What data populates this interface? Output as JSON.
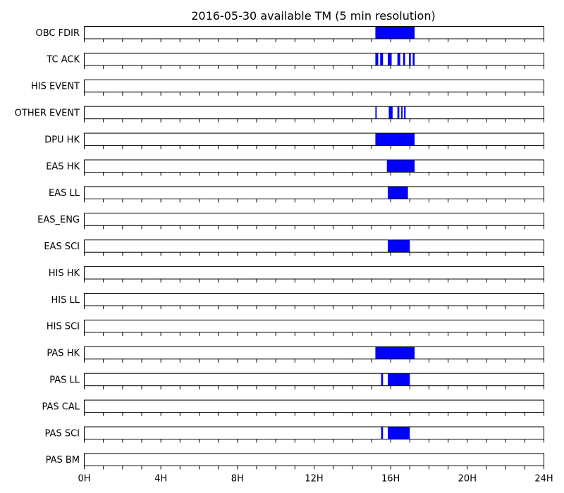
{
  "chart_data": {
    "type": "timeline",
    "title": "2016-05-30 available TM (5 min resolution)",
    "xlabel": "",
    "ylabel": "",
    "x_unit": "hours",
    "xlim": [
      0,
      24
    ],
    "x_ticks": [
      0,
      4,
      8,
      12,
      16,
      20,
      24
    ],
    "x_tick_labels": [
      "0H",
      "4H",
      "8H",
      "12H",
      "16H",
      "20H",
      "24H"
    ],
    "x_minor_step_hours": 1,
    "bar_color": "#0000ff",
    "grid": false,
    "rows": [
      {
        "label": "OBC FDIR",
        "intervals": [
          [
            15.2,
            17.25
          ]
        ]
      },
      {
        "label": "TC ACK",
        "intervals": [
          [
            15.2,
            15.35
          ],
          [
            15.45,
            15.6
          ],
          [
            15.85,
            16.05
          ],
          [
            16.35,
            16.5
          ],
          [
            16.65,
            16.75
          ],
          [
            16.95,
            17.05
          ],
          [
            17.15,
            17.25
          ]
        ]
      },
      {
        "label": "HIS EVENT",
        "intervals": []
      },
      {
        "label": "OTHER EVENT",
        "intervals": [
          [
            15.2,
            15.27
          ],
          [
            15.9,
            16.1
          ],
          [
            16.35,
            16.45
          ],
          [
            16.55,
            16.62
          ],
          [
            16.7,
            16.78
          ]
        ]
      },
      {
        "label": "DPU HK",
        "intervals": [
          [
            15.2,
            17.25
          ]
        ]
      },
      {
        "label": "EAS HK",
        "intervals": [
          [
            15.8,
            17.25
          ]
        ]
      },
      {
        "label": "EAS LL",
        "intervals": [
          [
            15.85,
            16.9
          ]
        ]
      },
      {
        "label": "EAS_ENG",
        "intervals": []
      },
      {
        "label": "EAS SCI",
        "intervals": [
          [
            15.85,
            17.0
          ]
        ]
      },
      {
        "label": "HIS HK",
        "intervals": []
      },
      {
        "label": "HIS LL",
        "intervals": []
      },
      {
        "label": "HIS SCI",
        "intervals": []
      },
      {
        "label": "PAS HK",
        "intervals": [
          [
            15.2,
            17.25
          ]
        ]
      },
      {
        "label": "PAS LL",
        "intervals": [
          [
            15.5,
            15.6
          ],
          [
            15.85,
            17.0
          ]
        ]
      },
      {
        "label": "PAS CAL",
        "intervals": []
      },
      {
        "label": "PAS SCI",
        "intervals": [
          [
            15.5,
            15.6
          ],
          [
            15.85,
            17.0
          ]
        ]
      },
      {
        "label": "PAS BM",
        "intervals": []
      }
    ]
  }
}
